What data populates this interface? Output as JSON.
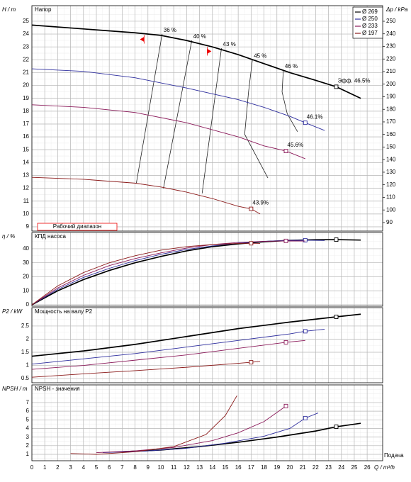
{
  "chart_data": [
    {
      "type": "line",
      "title": "Напор",
      "ylabel": "H / m",
      "y2label": "Δp / kPa",
      "xlim": [
        0,
        27.2
      ],
      "xticks": [
        0,
        1,
        2,
        3,
        4,
        5,
        6,
        7,
        8,
        9,
        10,
        11,
        12,
        13,
        14,
        15,
        16,
        17,
        18,
        19,
        20,
        21,
        22,
        23,
        24,
        25,
        26
      ],
      "ylim": [
        8.67,
        26.21
      ],
      "yticks": [
        9,
        10,
        11,
        12,
        13,
        14,
        15,
        16,
        17,
        18,
        19,
        20,
        21,
        22,
        23,
        24,
        25
      ],
      "y2lim": [
        83.2,
        262.4
      ],
      "y2ticks": [
        90,
        100,
        110,
        120,
        130,
        140,
        150,
        160,
        170,
        180,
        190,
        200,
        210,
        220,
        230,
        240,
        250
      ],
      "legend": "upper right",
      "series": [
        {
          "name": "Ø 269",
          "color": "#000000",
          "label": "Эфф.  46.5%",
          "x": [
            0,
            4,
            8,
            10,
            12,
            14,
            16,
            18,
            20,
            22,
            23.6,
            25.5
          ],
          "values": [
            24.7,
            24.4,
            24.1,
            23.9,
            23.5,
            23.0,
            22.4,
            21.7,
            21.0,
            20.4,
            19.9,
            19.0
          ],
          "marker": {
            "x": 23.6,
            "y": 19.9
          }
        },
        {
          "name": "Ø 250",
          "color": "#2e2e9e",
          "label": "46.1%",
          "x": [
            0,
            4,
            8,
            12,
            16,
            18,
            20,
            21.2,
            22.7
          ],
          "values": [
            21.3,
            21.1,
            20.6,
            19.8,
            18.9,
            18.3,
            17.6,
            17.1,
            16.5
          ],
          "marker": {
            "x": 21.2,
            "y": 17.1
          }
        },
        {
          "name": "Ø 233",
          "color": "#8b1a5a",
          "label": "45.6%",
          "x": [
            0,
            4,
            8,
            12,
            16,
            18,
            19.7,
            21.2
          ],
          "values": [
            18.5,
            18.3,
            17.9,
            17.1,
            16.0,
            15.3,
            14.9,
            14.3
          ],
          "marker": {
            "x": 19.7,
            "y": 14.9
          }
        },
        {
          "name": "Ø 197",
          "color": "#8b1a1a",
          "label": "43.9%",
          "x": [
            0,
            4,
            8,
            10,
            12,
            14,
            16,
            17,
            17.7
          ],
          "values": [
            12.85,
            12.7,
            12.4,
            12.1,
            11.7,
            11.2,
            10.6,
            10.4,
            10.0
          ],
          "marker": {
            "x": 17,
            "y": 10.4
          }
        }
      ],
      "efficiency_lines": [
        {
          "label": "36 %",
          "x": [
            10.1,
            8.1
          ],
          "values": [
            24.0,
            12.4
          ]
        },
        {
          "label": "40 %",
          "x": [
            12.4,
            10.2
          ],
          "values": [
            23.5,
            12.0
          ]
        },
        {
          "label": "43 %",
          "x": [
            14.7,
            13.2
          ],
          "values": [
            22.9,
            11.6
          ]
        },
        {
          "label": "45 %",
          "x": [
            17.1,
            16.8,
            16.5,
            18.3
          ],
          "values": [
            22.0,
            19.5,
            16.2,
            12.8
          ]
        },
        {
          "label": "46 %",
          "x": [
            19.5,
            19.4,
            19.8,
            20.6
          ],
          "values": [
            21.2,
            19.5,
            17.8,
            16.4
          ]
        }
      ],
      "operating_range": {
        "label": "Рабочий диапазон",
        "x": [
          8.7,
          13.6
        ]
      }
    },
    {
      "type": "line",
      "title": "КПД насоса",
      "ylabel": "η / %",
      "xlim": [
        0,
        27.2
      ],
      "xticks": [
        0,
        1,
        2,
        3,
        4,
        5,
        6,
        7,
        8,
        9,
        10,
        11,
        12,
        13,
        14,
        15,
        16,
        17,
        18,
        19,
        20,
        21,
        22,
        23,
        24,
        25,
        26
      ],
      "ylim": [
        -1,
        51.6
      ],
      "yticks": [
        0,
        10,
        20,
        30,
        40
      ],
      "series": [
        {
          "color": "#000000",
          "x": [
            0,
            2,
            4,
            6,
            8,
            10,
            12,
            14,
            16,
            18,
            20,
            22,
            23.6,
            25.5
          ],
          "values": [
            0,
            10,
            18,
            24.5,
            30,
            34.5,
            38.5,
            41.5,
            43.5,
            45,
            46,
            46.4,
            46.5,
            46.2
          ],
          "marker": {
            "x": 23.6,
            "y": 46.5
          }
        },
        {
          "color": "#2e2e9e",
          "x": [
            0,
            2,
            4,
            6,
            8,
            10,
            12,
            14,
            16,
            18,
            20,
            21.2,
            22.7
          ],
          "values": [
            0,
            11,
            19.5,
            26,
            31.5,
            36,
            39.5,
            42,
            44,
            45.3,
            46,
            46.1,
            45.9
          ],
          "marker": {
            "x": 21.2,
            "y": 46.1
          }
        },
        {
          "color": "#8b1a5a",
          "x": [
            0,
            2,
            4,
            6,
            8,
            10,
            12,
            14,
            16,
            18,
            19.7,
            21.2
          ],
          "values": [
            0,
            12,
            21,
            28,
            33,
            37,
            40.5,
            43,
            44.5,
            45.3,
            45.6,
            45.5
          ],
          "marker": {
            "x": 19.7,
            "y": 45.6
          }
        },
        {
          "color": "#8b1a1a",
          "x": [
            0,
            2,
            4,
            6,
            8,
            10,
            12,
            14,
            16,
            17,
            17.7
          ],
          "values": [
            0,
            13.5,
            23,
            30,
            35,
            39,
            41.5,
            43,
            43.8,
            43.9,
            43.8
          ],
          "marker": {
            "x": 17,
            "y": 43.9
          }
        }
      ]
    },
    {
      "type": "line",
      "title": "Мощность на валу P2",
      "ylabel": "P2 / kW",
      "xlim": [
        0,
        27.2
      ],
      "xticks": [
        0,
        1,
        2,
        3,
        4,
        5,
        6,
        7,
        8,
        9,
        10,
        11,
        12,
        13,
        14,
        15,
        16,
        17,
        18,
        19,
        20,
        21,
        22,
        23,
        24,
        25,
        26
      ],
      "ylim": [
        0.34,
        3.2
      ],
      "yticks": [
        0.5,
        1,
        1.5,
        2,
        2.5
      ],
      "series": [
        {
          "color": "#000000",
          "x": [
            0,
            4,
            8,
            12,
            16,
            20,
            23.6,
            25.5
          ],
          "values": [
            1.35,
            1.55,
            1.8,
            2.1,
            2.4,
            2.65,
            2.85,
            2.95
          ],
          "marker": {
            "x": 23.6,
            "y": 2.85
          }
        },
        {
          "color": "#2e2e9e",
          "x": [
            0,
            4,
            8,
            12,
            16,
            20,
            21.2,
            22.7
          ],
          "values": [
            1.05,
            1.25,
            1.45,
            1.7,
            1.95,
            2.2,
            2.3,
            2.38
          ],
          "marker": {
            "x": 21.2,
            "y": 2.3
          }
        },
        {
          "color": "#8b1a5a",
          "x": [
            0,
            4,
            8,
            12,
            16,
            19.7,
            21.2
          ],
          "values": [
            0.85,
            1.0,
            1.2,
            1.4,
            1.65,
            1.88,
            1.95
          ],
          "marker": {
            "x": 19.7,
            "y": 1.88
          }
        },
        {
          "color": "#8b1a1a",
          "x": [
            0,
            4,
            8,
            12,
            16,
            17,
            17.7
          ],
          "values": [
            0.55,
            0.68,
            0.8,
            0.93,
            1.08,
            1.12,
            1.15
          ],
          "marker": {
            "x": 17,
            "y": 1.12
          }
        }
      ]
    },
    {
      "type": "line",
      "title": "NPSH - значения",
      "ylabel": "NPSH / m",
      "xlabel": "Q / m³/h",
      "xnote": "Подача",
      "xlim": [
        0,
        27.2
      ],
      "xticks": [
        0,
        1,
        2,
        3,
        4,
        5,
        6,
        7,
        8,
        9,
        10,
        11,
        12,
        13,
        14,
        15,
        16,
        17,
        18,
        19,
        20,
        21,
        22,
        23,
        24,
        25,
        26
      ],
      "ylim": [
        0.26,
        9.05
      ],
      "yticks": [
        1,
        2,
        3,
        4,
        5,
        6,
        7
      ],
      "series": [
        {
          "color": "#000000",
          "x": [
            7,
            10,
            13,
            16,
            19,
            22,
            23.6,
            25.5
          ],
          "values": [
            1.3,
            1.5,
            1.9,
            2.4,
            3.0,
            3.7,
            4.2,
            4.6
          ],
          "marker": {
            "x": 23.6,
            "y": 4.2
          }
        },
        {
          "color": "#2e2e9e",
          "x": [
            5.5,
            9,
            12,
            15,
            18,
            20,
            21.2,
            22.2
          ],
          "values": [
            1.2,
            1.4,
            1.7,
            2.3,
            3.1,
            4.0,
            5.2,
            5.8
          ],
          "marker": {
            "x": 21.2,
            "y": 5.2
          }
        },
        {
          "color": "#8b1a5a",
          "x": [
            5,
            8,
            11,
            14,
            16,
            18,
            19.7
          ],
          "values": [
            1.2,
            1.4,
            1.8,
            2.6,
            3.5,
            4.8,
            6.6
          ],
          "marker": {
            "x": 19.7,
            "y": 6.6
          }
        },
        {
          "color": "#8b1a1a",
          "x": [
            3,
            5,
            8,
            11,
            13.5,
            15,
            15.9
          ],
          "values": [
            1.1,
            1.0,
            1.3,
            1.9,
            3.3,
            5.5,
            7.8
          ]
        }
      ]
    }
  ]
}
